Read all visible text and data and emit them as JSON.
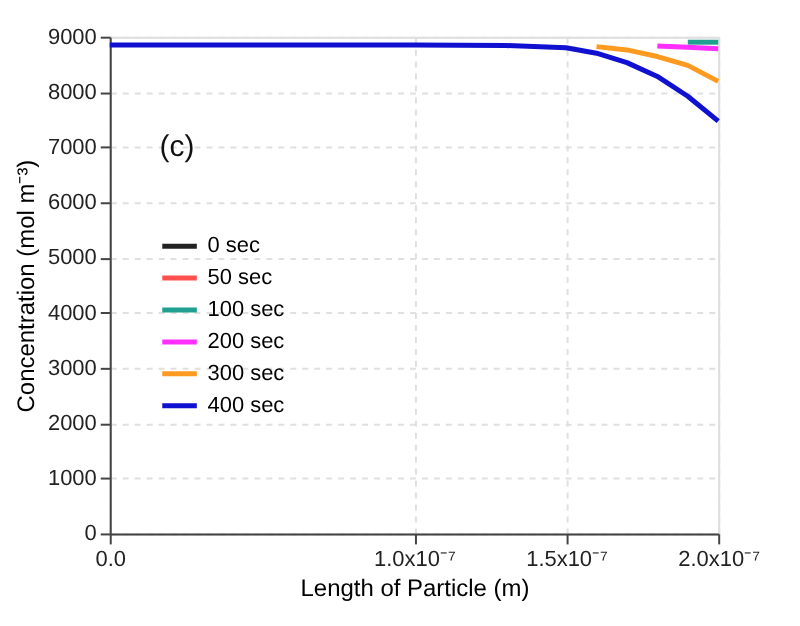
{
  "chart_data": {
    "type": "line",
    "xlabel": "Length of Particle (m)",
    "ylabel": "Concentration (mol m⁻³)",
    "annotations": [
      "(c)"
    ],
    "xlim": [
      0,
      2e-07
    ],
    "xticks": [
      {
        "value": 0,
        "label": "0.0"
      },
      {
        "value": 1e-07,
        "label": "1.0x10⁻⁷"
      },
      {
        "value": 1.5e-07,
        "label": "1.5x10⁻⁷"
      },
      {
        "value": 2e-07,
        "label": "2.0x10⁻⁷"
      }
    ],
    "ylim": [
      0,
      9000
    ],
    "yticks": [
      0,
      1000,
      2000,
      3000,
      4000,
      5000,
      6000,
      7000,
      8000,
      9000
    ],
    "grid": true,
    "legend": "left",
    "line_style": "solid",
    "x": [
      0,
      1e-07,
      1.3e-07,
      1.5e-07,
      1.6e-07,
      1.7e-07,
      1.8e-07,
      1.9e-07,
      2e-07
    ],
    "series": [
      {
        "name": "0 sec",
        "color": "#222222",
        "values": [
          null,
          null,
          null,
          null,
          null,
          null,
          null,
          null,
          null
        ]
      },
      {
        "name": "50 sec",
        "color": "#ff5050",
        "values": [
          null,
          null,
          null,
          null,
          null,
          null,
          null,
          null,
          null
        ]
      },
      {
        "name": "100 sec",
        "color": "#20a090",
        "values": [
          null,
          null,
          null,
          null,
          null,
          null,
          null,
          8900,
          8900
        ]
      },
      {
        "name": "200 sec",
        "color": "#ff30ff",
        "values": [
          null,
          null,
          null,
          null,
          null,
          null,
          8830,
          8810,
          8780
        ]
      },
      {
        "name": "300 sec",
        "color": "#ff9a20",
        "values": [
          null,
          null,
          null,
          null,
          8820,
          8760,
          8640,
          8480,
          8190
        ]
      },
      {
        "name": "400 sec",
        "color": "#1010d0",
        "values": [
          8850,
          8850,
          8840,
          8800,
          8700,
          8530,
          8280,
          7920,
          7470
        ]
      }
    ]
  }
}
